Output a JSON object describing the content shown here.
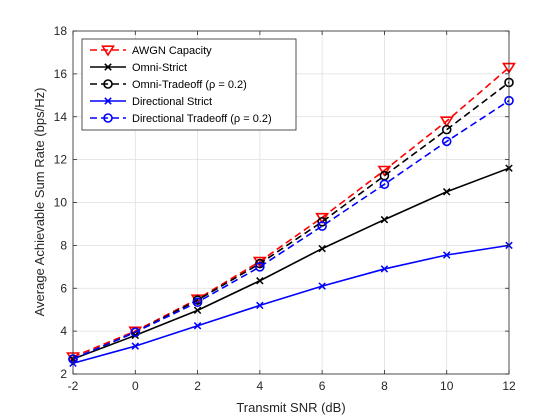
{
  "chart_data": {
    "type": "line",
    "xlabel": "Transmit SNR (dB)",
    "ylabel": "Average Achievable Sum Rate (bps/Hz)",
    "xlim": [
      -2,
      12
    ],
    "ylim": [
      2,
      18
    ],
    "xticks": [
      -2,
      0,
      2,
      4,
      6,
      8,
      10,
      12
    ],
    "yticks": [
      2,
      4,
      6,
      8,
      10,
      12,
      14,
      16,
      18
    ],
    "grid": true,
    "legend_position": "top-left",
    "x": [
      -2,
      0,
      2,
      4,
      6,
      8,
      10,
      12
    ],
    "series": [
      {
        "name": "AWGN Capacity",
        "color": "#ff0000",
        "dash": "dashed",
        "marker": "triangle-down",
        "values": [
          2.8,
          4.0,
          5.5,
          7.25,
          9.3,
          11.5,
          13.8,
          16.3
        ]
      },
      {
        "name": "Omni-Strict",
        "color": "#000000",
        "dash": "solid",
        "marker": "x",
        "values": [
          2.7,
          3.8,
          4.97,
          6.35,
          7.85,
          9.2,
          10.5,
          11.6
        ]
      },
      {
        "name": "Omni-Tradeoff (ρ = 0.2)",
        "color": "#000000",
        "dash": "dashed",
        "marker": "circle",
        "values": [
          2.7,
          3.95,
          5.45,
          7.15,
          9.1,
          11.25,
          13.4,
          15.6
        ]
      },
      {
        "name": "Directional Strict",
        "color": "#0000ff",
        "dash": "solid",
        "marker": "x",
        "values": [
          2.5,
          3.3,
          4.25,
          5.2,
          6.1,
          6.9,
          7.55,
          8.0
        ]
      },
      {
        "name": "Directional Tradeoff (ρ = 0.2)",
        "color": "#0000ff",
        "dash": "dashed",
        "marker": "circle",
        "values": [
          2.7,
          3.95,
          5.35,
          7.0,
          8.9,
          10.85,
          12.85,
          14.75
        ]
      }
    ]
  }
}
